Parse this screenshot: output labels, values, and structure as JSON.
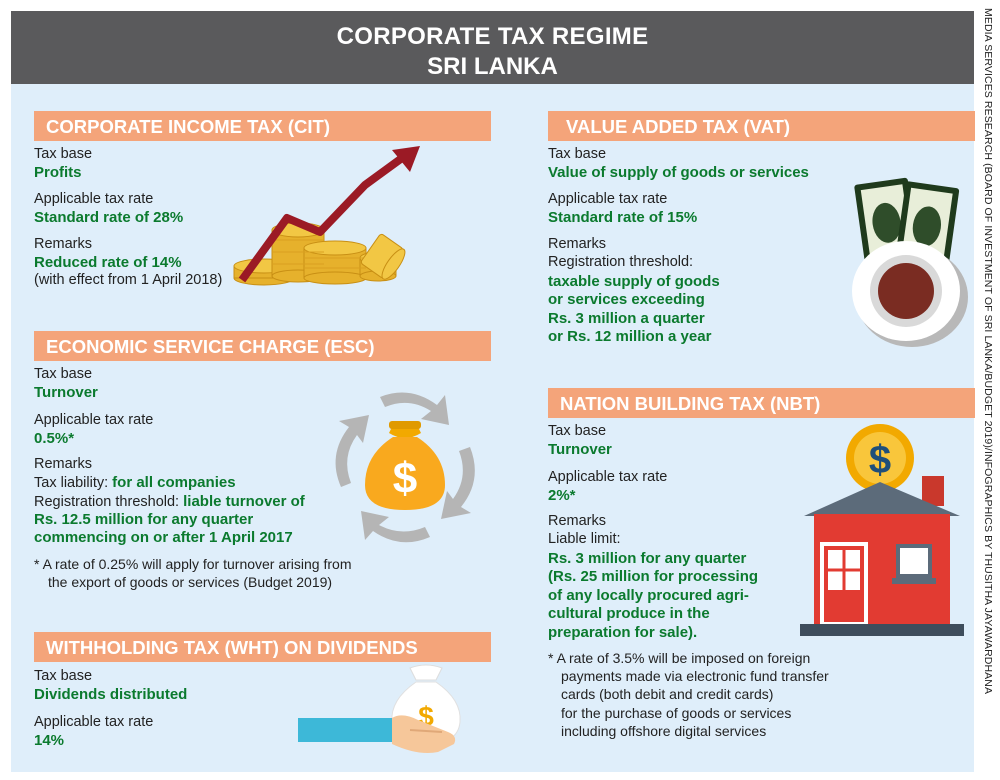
{
  "header": {
    "title_line1": "CORPORATE TAX REGIME",
    "title_line2": "SRI LANKA"
  },
  "credit": "MEDIA SERVICES RESEARCH (BOARD OF INVESTMENT OF SRI LANKA/BUDGET 2019)/INFOGRAPHICS BY THUSITHA JAYAWARDHANA",
  "cit": {
    "title": "CORPORATE INCOME TAX (CIT)",
    "base_label": "Tax base",
    "base_value": "Profits",
    "rate_label": "Applicable tax rate",
    "rate_value": "Standard rate of 28%",
    "remarks_label": "Remarks",
    "remarks_value": "Reduced rate of 14%",
    "remarks_note": "(with effect from 1 April 2018)"
  },
  "esc": {
    "title": "ECONOMIC SERVICE CHARGE (ESC)",
    "base_label": "Tax base",
    "base_value": "Turnover",
    "rate_label": "Applicable tax rate",
    "rate_value": "0.5%*",
    "remarks_label": "Remarks",
    "liability_label": "Tax liability:",
    "liability_value": "for all companies",
    "threshold_label": "Registration threshold:",
    "threshold_value1": "liable turnover of",
    "threshold_value2": "Rs. 12.5 million for any quarter",
    "threshold_value3": "commencing on or after 1 April 2017",
    "footnote1": "*  A rate of 0.25% will apply for turnover arising from",
    "footnote2": "the export of goods or services (Budget 2019)"
  },
  "wht": {
    "title": "WITHHOLDING TAX (WHT) ON DIVIDENDS",
    "base_label": "Tax base",
    "base_value": "Dividends distributed",
    "rate_label": "Applicable tax rate",
    "rate_value": "14%"
  },
  "vat": {
    "title": "VALUE ADDED TAX (VAT)",
    "base_label": "Tax base",
    "base_value": "Value of supply of goods or services",
    "rate_label": "Applicable tax rate",
    "rate_value": "Standard rate of 15%",
    "remarks_label": "Remarks",
    "threshold_label": "Registration threshold:",
    "threshold_value1": "taxable supply of goods",
    "threshold_value2": "or services exceeding",
    "threshold_value3": "Rs. 3 million a quarter",
    "threshold_value4": "or Rs. 12 million a year"
  },
  "nbt": {
    "title": "NATION BUILDING TAX (NBT)",
    "base_label": "Tax base",
    "base_value": "Turnover",
    "rate_label": "Applicable tax rate",
    "rate_value": "2%*",
    "remarks_label": "Remarks",
    "liable_label": "Liable limit:",
    "limit1": "Rs. 3 million for any quarter",
    "limit2": "(Rs. 25 million for processing",
    "limit3": "of any locally procured agri-",
    "limit4": "cultural produce in the",
    "limit5": "preparation for sale).",
    "footnote1": "*  A rate of 3.5% will be imposed on foreign",
    "footnote2": "payments made via electronic fund transfer",
    "footnote3": "cards (both debit and credit cards)",
    "footnote4": "for the purchase of goods or services",
    "footnote5": "including offshore digital services"
  },
  "icons": {
    "dollar_sign": "$",
    "cit_art": "coins-rising-arrow-icon",
    "esc_art": "money-bag-cycle-icon",
    "vat_art": "banknotes-coffee-icon",
    "nbt_art": "house-dollar-coin-icon",
    "wht_art": "hand-money-bag-icon"
  }
}
